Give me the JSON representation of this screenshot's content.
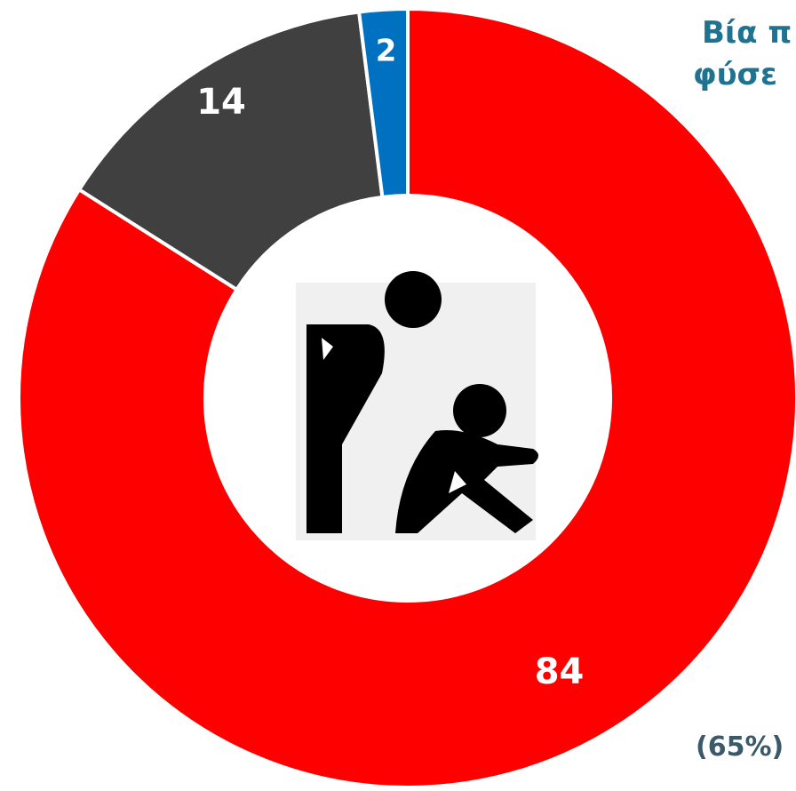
{
  "chart_data": {
    "type": "donut",
    "title_lines": [
      "Βία π",
      "φύσε"
    ],
    "annotation": "(65%)",
    "categories": [
      null,
      null,
      null
    ],
    "values": [
      84,
      14,
      2
    ],
    "colors": [
      "#ff0000",
      "#404040",
      "#0070c0"
    ]
  }
}
